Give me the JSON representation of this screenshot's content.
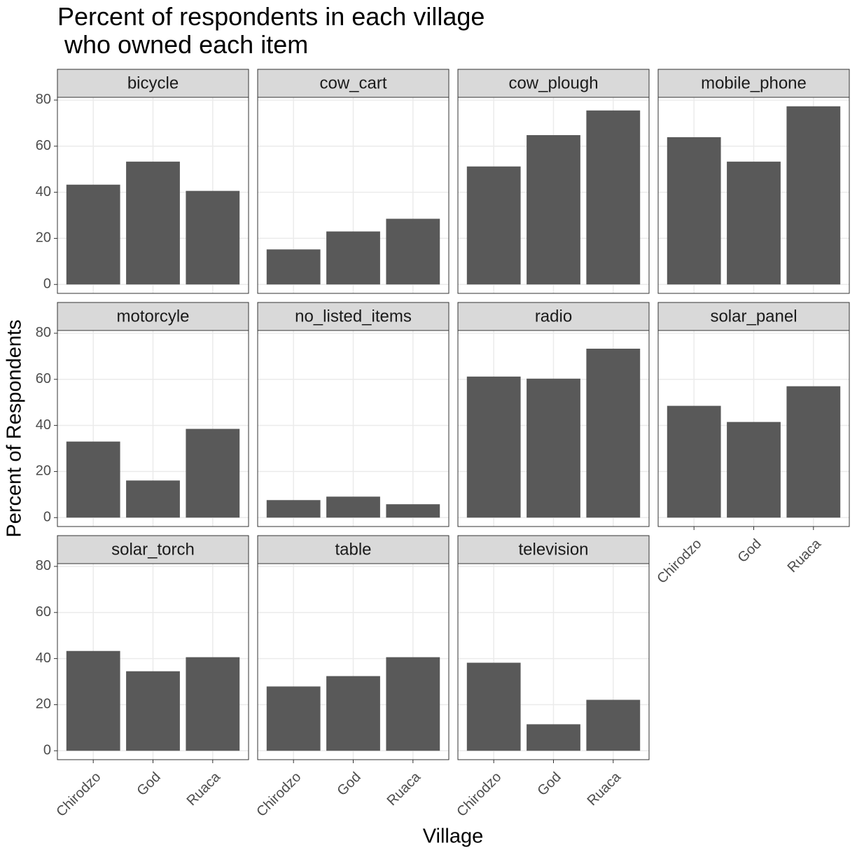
{
  "title": "Percent of respondents in each village\n who owned each item",
  "x_label": "Village",
  "y_label": "Percent of Respondents",
  "chart_data": [
    {
      "type": "bar",
      "title": "bicycle",
      "categories": [
        "Chirodzo",
        "God",
        "Ruaca"
      ],
      "values": [
        43.3,
        53.3,
        40.6
      ],
      "color": "#595959",
      "ylim": [
        -3.87,
        81.2
      ],
      "yticks": [
        0,
        20,
        40,
        60,
        80
      ],
      "grid": true
    },
    {
      "type": "bar",
      "title": "cow_cart",
      "categories": [
        "Chirodzo",
        "God",
        "Ruaca"
      ],
      "values": [
        15.2,
        23.0,
        28.5
      ],
      "color": "#595959",
      "ylim": [
        -3.87,
        81.2
      ],
      "yticks": [
        0,
        20,
        40,
        60,
        80
      ],
      "grid": true
    },
    {
      "type": "bar",
      "title": "cow_plough",
      "categories": [
        "Chirodzo",
        "God",
        "Ruaca"
      ],
      "values": [
        51.2,
        64.8,
        75.5
      ],
      "color": "#595959",
      "ylim": [
        -3.87,
        81.2
      ],
      "yticks": [
        0,
        20,
        40,
        60,
        80
      ],
      "grid": true
    },
    {
      "type": "bar",
      "title": "mobile_phone",
      "categories": [
        "Chirodzo",
        "God",
        "Ruaca"
      ],
      "values": [
        63.9,
        53.3,
        77.3
      ],
      "color": "#595959",
      "ylim": [
        -3.87,
        81.2
      ],
      "yticks": [
        0,
        20,
        40,
        60,
        80
      ],
      "grid": true
    },
    {
      "type": "bar",
      "title": "motorcyle",
      "categories": [
        "Chirodzo",
        "God",
        "Ruaca"
      ],
      "values": [
        33.0,
        16.1,
        38.5
      ],
      "color": "#595959",
      "ylim": [
        -3.87,
        81.2
      ],
      "yticks": [
        0,
        20,
        40,
        60,
        80
      ],
      "grid": true
    },
    {
      "type": "bar",
      "title": "no_listed_items",
      "categories": [
        "Chirodzo",
        "God",
        "Ruaca"
      ],
      "values": [
        7.6,
        9.1,
        5.8
      ],
      "color": "#595959",
      "ylim": [
        -3.87,
        81.2
      ],
      "yticks": [
        0,
        20,
        40,
        60,
        80
      ],
      "grid": true
    },
    {
      "type": "bar",
      "title": "radio",
      "categories": [
        "Chirodzo",
        "God",
        "Ruaca"
      ],
      "values": [
        61.2,
        60.3,
        73.3
      ],
      "color": "#595959",
      "ylim": [
        -3.87,
        81.2
      ],
      "yticks": [
        0,
        20,
        40,
        60,
        80
      ],
      "grid": true
    },
    {
      "type": "bar",
      "title": "solar_panel",
      "categories": [
        "Chirodzo",
        "God",
        "Ruaca"
      ],
      "values": [
        48.5,
        41.5,
        57.0
      ],
      "color": "#595959",
      "ylim": [
        -3.87,
        81.2
      ],
      "yticks": [
        0,
        20,
        40,
        60,
        80
      ],
      "grid": true
    },
    {
      "type": "bar",
      "title": "solar_torch",
      "categories": [
        "Chirodzo",
        "God",
        "Ruaca"
      ],
      "values": [
        43.3,
        34.5,
        40.6
      ],
      "color": "#595959",
      "ylim": [
        -3.87,
        81.2
      ],
      "yticks": [
        0,
        20,
        40,
        60,
        80
      ],
      "grid": true
    },
    {
      "type": "bar",
      "title": "table",
      "categories": [
        "Chirodzo",
        "God",
        "Ruaca"
      ],
      "values": [
        27.9,
        32.4,
        40.6
      ],
      "color": "#595959",
      "ylim": [
        -3.87,
        81.2
      ],
      "yticks": [
        0,
        20,
        40,
        60,
        80
      ],
      "grid": true
    },
    {
      "type": "bar",
      "title": "television",
      "categories": [
        "Chirodzo",
        "God",
        "Ruaca"
      ],
      "values": [
        38.2,
        11.5,
        22.1
      ],
      "color": "#595959",
      "ylim": [
        -3.87,
        81.2
      ],
      "yticks": [
        0,
        20,
        40,
        60,
        80
      ],
      "grid": true
    }
  ]
}
